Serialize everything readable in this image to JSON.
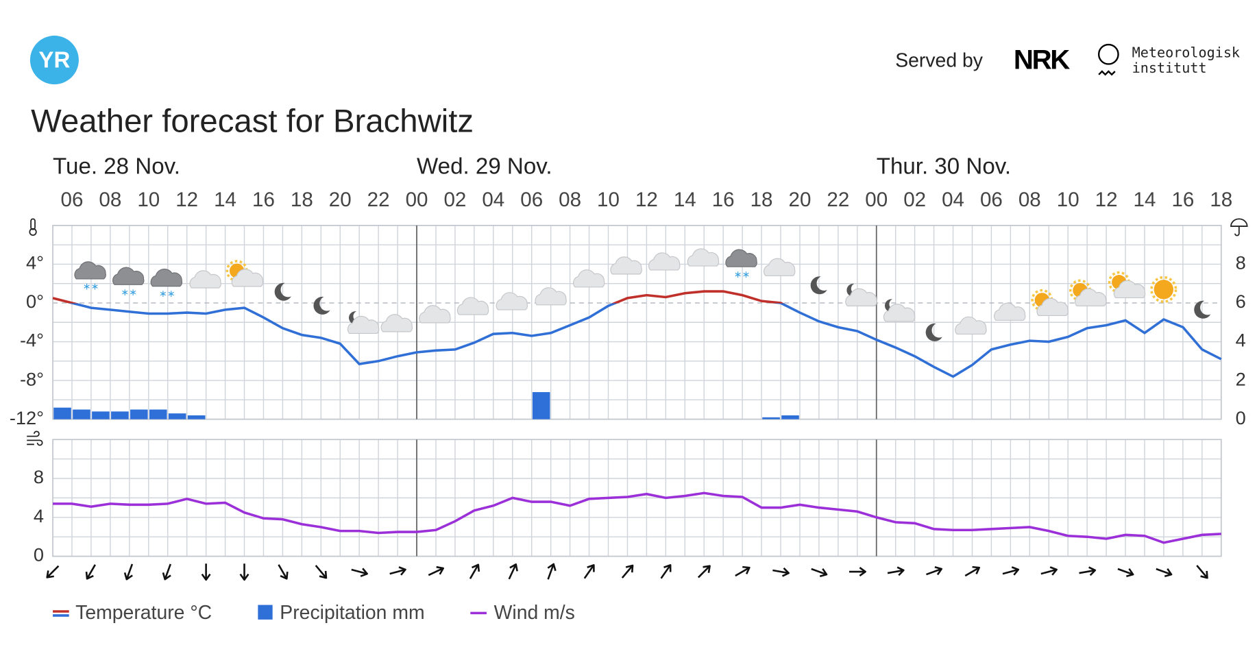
{
  "logo": "YR",
  "served_by": "Served by",
  "nrk": "NRK",
  "met": [
    "Meteorologisk",
    "institutt"
  ],
  "title": "Weather forecast for Brachwitz",
  "chart_data": [
    {
      "type": "line",
      "days": [
        {
          "value": 0,
          "label": "Tue. 28 Nov."
        },
        {
          "value": 24,
          "label": "Wed. 29 Nov."
        },
        {
          "value": 48,
          "label": "Thur. 30 Nov."
        }
      ],
      "xlim": [
        5,
        66
      ],
      "xticks": [
        {
          "value": 6,
          "label": "06"
        },
        {
          "value": 8,
          "label": "08"
        },
        10,
        12,
        14,
        16,
        18,
        20,
        22,
        {
          "value": 24,
          "label": "00"
        },
        {
          "value": 26,
          "label": "02"
        },
        {
          "value": 28,
          "label": "04"
        },
        {
          "value": 30,
          "label": "06"
        },
        {
          "value": 32,
          "label": "08"
        },
        {
          "value": 34,
          "label": "10"
        },
        {
          "value": 36,
          "label": "12"
        },
        {
          "value": 38,
          "label": "14"
        },
        {
          "value": 40,
          "label": "16"
        },
        {
          "value": 42,
          "label": "18"
        },
        {
          "value": 44,
          "label": "20"
        },
        {
          "value": 46,
          "label": "22"
        },
        {
          "value": 48,
          "label": "00"
        },
        {
          "value": 50,
          "label": "02"
        },
        {
          "value": 52,
          "label": "04"
        },
        {
          "value": 54,
          "label": "06"
        },
        {
          "value": 56,
          "label": "08"
        },
        {
          "value": 58,
          "label": "10"
        },
        {
          "value": 60,
          "label": "12"
        },
        {
          "value": 62,
          "label": "14"
        },
        {
          "value": 64,
          "label": "16"
        },
        {
          "value": 66,
          "label": "18"
        }
      ],
      "ylim": [
        -12,
        8
      ],
      "yticks": [
        {
          "value": -12,
          "label": "-12°"
        },
        {
          "value": -8,
          "label": "-8°"
        },
        {
          "value": -4,
          "label": "-4°"
        },
        {
          "value": 0,
          "label": "0°"
        },
        {
          "value": 4,
          "label": "4°"
        }
      ],
      "y2lim": [
        0,
        10
      ],
      "y2ticks": [
        0,
        2,
        4,
        6,
        8
      ],
      "grid": true,
      "x": [
        5,
        6,
        7,
        8,
        9,
        10,
        11,
        12,
        13,
        14,
        15,
        16,
        17,
        18,
        19,
        20,
        21,
        22,
        23,
        24,
        25,
        26,
        27,
        28,
        29,
        30,
        31,
        32,
        33,
        34,
        35,
        36,
        37,
        38,
        39,
        40,
        41,
        42,
        43,
        44,
        45,
        46,
        47,
        48,
        49,
        50,
        51,
        52,
        53,
        54,
        55,
        56,
        57,
        58,
        59,
        60,
        61,
        62,
        63,
        64,
        65,
        66
      ],
      "series": [
        {
          "name": "Temperature °C",
          "color": "#c0302b",
          "color_below_zero": "#2f6fd6",
          "values": [
            0.5,
            0,
            -0.5,
            -0.7,
            -0.9,
            -1.1,
            -1.1,
            -1,
            -1.1,
            -0.7,
            -0.5,
            -1.5,
            -2.6,
            -3.3,
            -3.6,
            -4.2,
            -6.3,
            -6,
            -5.5,
            -5.1,
            -4.9,
            -4.8,
            -4.1,
            -3.2,
            -3.1,
            -3.4,
            -3.1,
            -2.3,
            -1.5,
            -0.3,
            0.5,
            0.8,
            0.6,
            1,
            1.2,
            1.2,
            0.8,
            0.2,
            0,
            -1,
            -1.9,
            -2.5,
            -2.9,
            -3.8,
            -4.6,
            -5.5,
            -6.6,
            -7.6,
            -6.4,
            -4.8,
            -4.3,
            -3.9,
            -4,
            -3.5,
            -2.6,
            -2.3,
            -1.8,
            -3.1,
            -1.7,
            -2.5,
            -4.8,
            -5.8
          ]
        },
        {
          "name": "Precipitation mm",
          "type": "bar",
          "axis": "y2",
          "color": "#2f6fd8",
          "x": [
            5,
            6,
            7,
            8,
            9,
            10,
            11,
            12,
            30,
            42,
            43
          ],
          "values": [
            0.6,
            0.5,
            0.4,
            0.4,
            0.5,
            0.5,
            0.3,
            0.2,
            1.4,
            0.1,
            0.2
          ]
        }
      ]
    },
    {
      "type": "line",
      "xlim": [
        5,
        66
      ],
      "ylim": [
        0,
        12
      ],
      "yticks": [
        0,
        4,
        8
      ],
      "grid": true,
      "x": [
        5,
        6,
        7,
        8,
        9,
        10,
        11,
        12,
        13,
        14,
        15,
        16,
        17,
        18,
        19,
        20,
        21,
        22,
        23,
        24,
        25,
        26,
        27,
        28,
        29,
        30,
        31,
        32,
        33,
        34,
        35,
        36,
        37,
        38,
        39,
        40,
        41,
        42,
        43,
        44,
        45,
        46,
        47,
        48,
        49,
        50,
        51,
        52,
        53,
        54,
        55,
        56,
        57,
        58,
        59,
        60,
        61,
        62,
        63,
        64,
        65,
        66
      ],
      "series": [
        {
          "name": "Wind m/s",
          "color": "#9b30d9",
          "values": [
            5.4,
            5.4,
            5.1,
            5.4,
            5.3,
            5.3,
            5.4,
            5.9,
            5.4,
            5.5,
            4.5,
            3.9,
            3.8,
            3.3,
            3.0,
            2.6,
            2.6,
            2.4,
            2.5,
            2.5,
            2.7,
            3.6,
            4.7,
            5.2,
            6.0,
            5.6,
            5.6,
            5.2,
            5.9,
            6.0,
            6.1,
            6.4,
            6.0,
            6.2,
            6.5,
            6.2,
            6.1,
            5.0,
            5.0,
            5.3,
            5.0,
            4.8,
            4.6,
            4.0,
            3.5,
            3.4,
            2.8,
            2.7,
            2.7,
            2.8,
            2.9,
            3.0,
            2.6,
            2.1,
            2.0,
            1.8,
            2.2,
            2.1,
            1.4,
            1.8,
            2.2,
            2.3
          ]
        }
      ],
      "wind_direction_x": [
        5,
        7,
        9,
        11,
        13,
        15,
        17,
        19,
        21,
        23,
        25,
        27,
        29,
        31,
        33,
        35,
        37,
        39,
        41,
        43,
        45,
        47,
        49,
        51,
        53,
        55,
        57,
        59,
        61,
        63,
        65
      ],
      "wind_direction_deg": [
        225,
        210,
        200,
        200,
        180,
        180,
        150,
        140,
        105,
        75,
        65,
        30,
        25,
        20,
        35,
        40,
        35,
        45,
        60,
        100,
        110,
        90,
        80,
        70,
        60,
        75,
        75,
        80,
        110,
        110,
        140
      ]
    }
  ]
}
